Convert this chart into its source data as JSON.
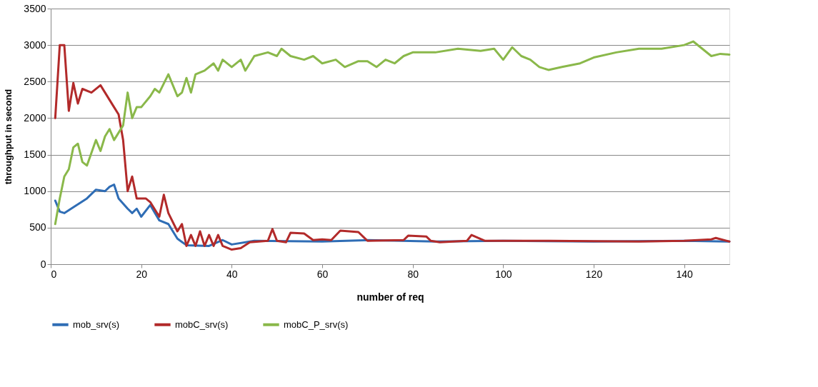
{
  "chart_data": {
    "type": "line",
    "xlabel": "number of req",
    "ylabel": "throughput in second",
    "xlim": [
      0,
      150
    ],
    "xticks": [
      0,
      20,
      40,
      60,
      80,
      100,
      120,
      140
    ],
    "ylim": [
      0,
      3500
    ],
    "yticks": [
      0,
      500,
      1000,
      1500,
      2000,
      2500,
      3000,
      3500
    ],
    "grid": "y",
    "legend": "bottom",
    "marker": "none",
    "line_style": "solid",
    "series": [
      {
        "name": "mob_srv(s)",
        "color": "#2f6db5",
        "x": [
          1,
          2,
          3,
          5,
          8,
          10,
          12,
          13,
          14,
          15,
          17,
          18,
          19,
          20,
          22,
          24,
          26,
          28,
          30,
          35,
          38,
          40,
          45,
          60,
          70,
          85,
          100,
          120,
          140,
          150
        ],
        "values": [
          870,
          720,
          700,
          780,
          900,
          1020,
          1000,
          1060,
          1090,
          900,
          760,
          700,
          760,
          650,
          810,
          600,
          550,
          350,
          260,
          250,
          330,
          270,
          320,
          310,
          330,
          310,
          320,
          310,
          320,
          310
        ]
      },
      {
        "name": "mobC_srv(s)",
        "color": "#b22a2a",
        "x": [
          1,
          2,
          3,
          4,
          5,
          6,
          7,
          9,
          11,
          12,
          14,
          15,
          16,
          17,
          18,
          19,
          21,
          22,
          24,
          25,
          26,
          28,
          29,
          30,
          31,
          32,
          33,
          34,
          35,
          36,
          37,
          38,
          40,
          42,
          44,
          48,
          49,
          50,
          52,
          53,
          56,
          58,
          60,
          62,
          64,
          68,
          70,
          78,
          79,
          83,
          84,
          86,
          92,
          93,
          96,
          110,
          130,
          140,
          146,
          147,
          150
        ],
        "values": [
          2000,
          3000,
          3000,
          2100,
          2480,
          2200,
          2400,
          2350,
          2450,
          2350,
          2150,
          2050,
          1700,
          1000,
          1200,
          900,
          900,
          850,
          650,
          950,
          700,
          450,
          550,
          250,
          400,
          250,
          450,
          250,
          400,
          250,
          400,
          250,
          200,
          220,
          300,
          320,
          480,
          320,
          300,
          430,
          420,
          330,
          340,
          330,
          460,
          440,
          320,
          330,
          390,
          380,
          320,
          300,
          320,
          400,
          320,
          320,
          310,
          320,
          340,
          360,
          310
        ]
      },
      {
        "name": "mobC_P_srv(s)",
        "color": "#8ab84a",
        "x": [
          1,
          2,
          3,
          4,
          5,
          6,
          7,
          8,
          10,
          11,
          12,
          13,
          14,
          16,
          17,
          18,
          19,
          20,
          22,
          23,
          24,
          26,
          28,
          29,
          30,
          31,
          32,
          34,
          36,
          37,
          38,
          40,
          42,
          43,
          45,
          48,
          50,
          51,
          53,
          56,
          58,
          60,
          63,
          65,
          68,
          70,
          72,
          74,
          76,
          78,
          80,
          85,
          90,
          95,
          98,
          100,
          102,
          104,
          106,
          108,
          110,
          113,
          117,
          120,
          125,
          130,
          135,
          140,
          142,
          144,
          146,
          148,
          150
        ],
        "values": [
          550,
          900,
          1200,
          1300,
          1600,
          1650,
          1400,
          1350,
          1700,
          1550,
          1750,
          1850,
          1700,
          1900,
          2350,
          2000,
          2150,
          2150,
          2300,
          2400,
          2350,
          2600,
          2300,
          2350,
          2550,
          2350,
          2600,
          2650,
          2750,
          2650,
          2800,
          2700,
          2800,
          2650,
          2850,
          2900,
          2850,
          2950,
          2850,
          2800,
          2850,
          2750,
          2800,
          2700,
          2780,
          2780,
          2700,
          2800,
          2750,
          2850,
          2900,
          2900,
          2950,
          2920,
          2950,
          2800,
          2970,
          2850,
          2800,
          2700,
          2660,
          2700,
          2750,
          2830,
          2900,
          2950,
          2950,
          3000,
          3050,
          2950,
          2850,
          2880,
          2870
        ]
      }
    ]
  }
}
